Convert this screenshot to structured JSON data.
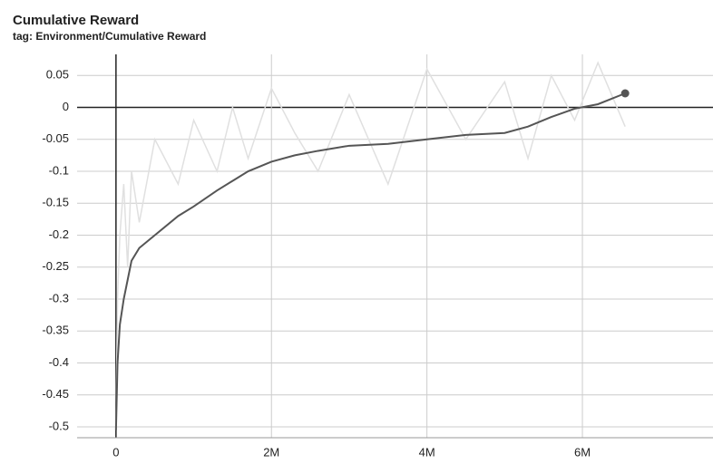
{
  "chart_data": {
    "type": "line",
    "title": "Cumulative Reward",
    "subtitle": "tag: Environment/Cumulative Reward",
    "x": [
      0,
      20000,
      50000,
      100000,
      150000,
      200000,
      300000,
      500000,
      800000,
      1000000,
      1300000,
      1500000,
      1700000,
      2000000,
      2300000,
      2600000,
      3000000,
      3500000,
      4000000,
      4500000,
      5000000,
      5300000,
      5600000,
      5900000,
      6200000,
      6550000
    ],
    "series": [
      {
        "color": "#e0e0e0",
        "values": [
          -0.5,
          -0.3,
          -0.2,
          -0.12,
          -0.25,
          -0.1,
          -0.18,
          -0.05,
          -0.12,
          -0.02,
          -0.1,
          0.0,
          -0.08,
          0.03,
          -0.04,
          -0.1,
          0.02,
          -0.12,
          0.06,
          -0.05,
          0.04,
          -0.08,
          0.05,
          -0.02,
          0.07,
          -0.03
        ]
      },
      {
        "color": "#555555",
        "values": [
          -0.505,
          -0.4,
          -0.34,
          -0.3,
          -0.27,
          -0.24,
          -0.22,
          -0.2,
          -0.17,
          -0.155,
          -0.13,
          -0.115,
          -0.1,
          -0.085,
          -0.075,
          -0.068,
          -0.06,
          -0.057,
          -0.05,
          -0.043,
          -0.04,
          -0.03,
          -0.015,
          -0.002,
          0.005,
          0.022
        ]
      }
    ],
    "xlim": [
      -500000,
      7680000
    ],
    "ylim": [
      -0.517,
      0.083
    ],
    "xticks": [
      0,
      {
        "value": 2000000,
        "label": "2M"
      },
      {
        "value": 4000000,
        "label": "4M"
      },
      {
        "value": 6000000,
        "label": "6M"
      }
    ],
    "yticks": [
      -0.5,
      -0.45,
      -0.4,
      -0.35,
      -0.3,
      -0.25,
      -0.2,
      -0.15,
      -0.1,
      -0.05,
      0,
      0.05
    ],
    "grid": true
  }
}
